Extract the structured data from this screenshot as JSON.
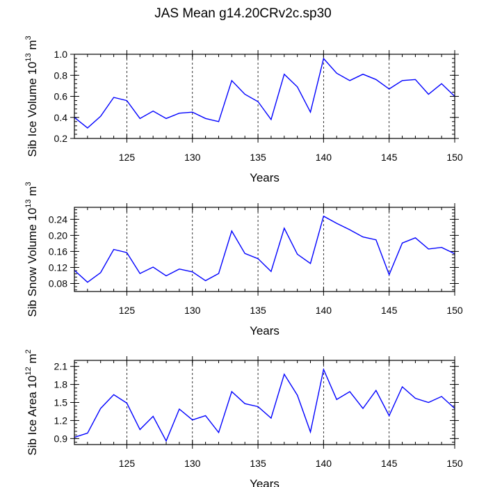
{
  "title": "JAS Mean g14.20CRv2c.sp30",
  "chart_data": [
    {
      "type": "line",
      "ylabel_parts": [
        "Sib Ice Volume 10",
        "13",
        " m",
        "3"
      ],
      "xlabel": "Years",
      "xlim": [
        121,
        150
      ],
      "ylim": [
        0.2,
        1.0
      ],
      "xticks": [
        125,
        130,
        135,
        140,
        145,
        150
      ],
      "yticks": [
        0.2,
        0.4,
        0.6,
        0.8,
        1.0
      ],
      "ytick_labels": [
        "0.2",
        "0.4",
        "0.6",
        "0.8",
        "1.0"
      ],
      "grid_x": [
        125,
        130,
        135,
        140,
        145
      ],
      "x": [
        121,
        122,
        123,
        124,
        125,
        126,
        127,
        128,
        129,
        130,
        131,
        132,
        133,
        134,
        135,
        136,
        137,
        138,
        139,
        140,
        141,
        142,
        143,
        144,
        145,
        146,
        147,
        148,
        149,
        150
      ],
      "values": [
        0.4,
        0.3,
        0.41,
        0.59,
        0.56,
        0.39,
        0.46,
        0.39,
        0.44,
        0.45,
        0.39,
        0.36,
        0.75,
        0.62,
        0.55,
        0.38,
        0.81,
        0.69,
        0.45,
        0.96,
        0.82,
        0.75,
        0.81,
        0.76,
        0.67,
        0.75,
        0.76,
        0.62,
        0.72,
        0.6
      ],
      "color": "#0000ff"
    },
    {
      "type": "line",
      "ylabel_parts": [
        "Sib Snow Volume 10",
        "13",
        " m",
        "3"
      ],
      "xlabel": "Years",
      "xlim": [
        121,
        150
      ],
      "ylim": [
        0.06,
        0.27
      ],
      "xticks": [
        125,
        130,
        135,
        140,
        145,
        150
      ],
      "yticks": [
        0.08,
        0.12,
        0.16,
        0.2,
        0.24
      ],
      "ytick_labels": [
        "0.08",
        "0.12",
        "0.16",
        "0.20",
        "0.24"
      ],
      "grid_x": [
        125,
        130,
        135,
        140,
        145
      ],
      "x": [
        121,
        122,
        123,
        124,
        125,
        126,
        127,
        128,
        129,
        130,
        131,
        132,
        133,
        134,
        135,
        136,
        137,
        138,
        139,
        140,
        141,
        142,
        143,
        144,
        145,
        146,
        147,
        148,
        149,
        150
      ],
      "values": [
        0.113,
        0.083,
        0.107,
        0.165,
        0.157,
        0.105,
        0.121,
        0.099,
        0.116,
        0.109,
        0.087,
        0.105,
        0.211,
        0.155,
        0.142,
        0.11,
        0.218,
        0.153,
        0.13,
        0.248,
        0.23,
        0.214,
        0.196,
        0.189,
        0.102,
        0.181,
        0.194,
        0.166,
        0.17,
        0.154
      ],
      "color": "#0000ff"
    },
    {
      "type": "line",
      "ylabel_parts": [
        "Sib Ice Area 10",
        "12",
        " m",
        "2"
      ],
      "xlabel": "Years",
      "xlim": [
        121,
        150
      ],
      "ylim": [
        0.8,
        2.2
      ],
      "xticks": [
        125,
        130,
        135,
        140,
        145,
        150
      ],
      "yticks": [
        0.9,
        1.2,
        1.5,
        1.8,
        2.1
      ],
      "ytick_labels": [
        "0.9",
        "1.2",
        "1.5",
        "1.8",
        "2.1"
      ],
      "grid_x": [
        125,
        130,
        135,
        140,
        145
      ],
      "x": [
        121,
        122,
        123,
        124,
        125,
        126,
        127,
        128,
        129,
        130,
        131,
        132,
        133,
        134,
        135,
        136,
        137,
        138,
        139,
        140,
        141,
        142,
        143,
        144,
        145,
        146,
        147,
        148,
        149,
        150
      ],
      "values": [
        0.92,
        0.99,
        1.4,
        1.63,
        1.49,
        1.05,
        1.27,
        0.86,
        1.39,
        1.21,
        1.28,
        1.0,
        1.68,
        1.48,
        1.43,
        1.24,
        1.97,
        1.62,
        1.01,
        2.05,
        1.55,
        1.68,
        1.4,
        1.7,
        1.28,
        1.76,
        1.57,
        1.5,
        1.6,
        1.4
      ],
      "color": "#0000ff"
    }
  ]
}
